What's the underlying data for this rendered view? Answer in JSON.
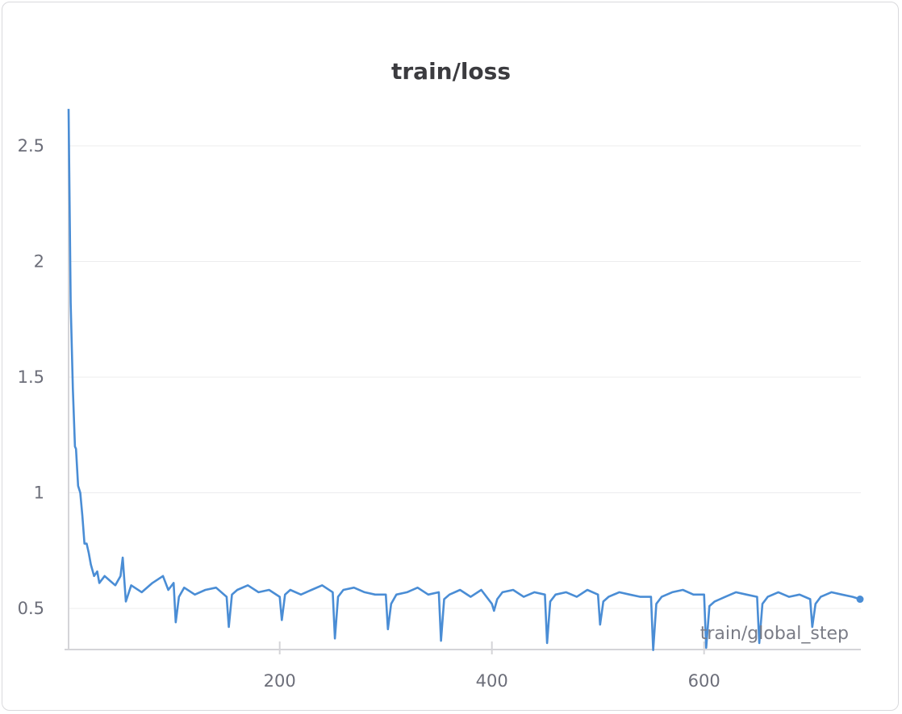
{
  "chart_data": {
    "type": "line",
    "title": "train/loss",
    "xlabel": "train/global_step",
    "ylabel": "",
    "xlim": [
      1,
      747
    ],
    "ylim": [
      0.32,
      2.66
    ],
    "xticks": [
      200,
      400,
      600
    ],
    "yticks": [
      0.5,
      1,
      1.5,
      2,
      2.5
    ],
    "ytick_labels": [
      "0.5",
      "1",
      "1.5",
      "2",
      "2.5"
    ],
    "grid": true,
    "series": [
      {
        "color": "#4a8dd5",
        "points": [
          [
            1,
            2.66
          ],
          [
            3,
            1.82
          ],
          [
            5,
            1.45
          ],
          [
            7,
            1.2
          ],
          [
            8,
            1.19
          ],
          [
            10,
            1.03
          ],
          [
            12,
            1.0
          ],
          [
            14,
            0.9
          ],
          [
            16,
            0.78
          ],
          [
            18,
            0.78
          ],
          [
            20,
            0.74
          ],
          [
            22,
            0.69
          ],
          [
            25,
            0.64
          ],
          [
            28,
            0.66
          ],
          [
            30,
            0.61
          ],
          [
            35,
            0.64
          ],
          [
            40,
            0.62
          ],
          [
            45,
            0.6
          ],
          [
            50,
            0.64
          ],
          [
            52,
            0.72
          ],
          [
            55,
            0.53
          ],
          [
            60,
            0.6
          ],
          [
            70,
            0.57
          ],
          [
            80,
            0.61
          ],
          [
            90,
            0.64
          ],
          [
            95,
            0.58
          ],
          [
            100,
            0.61
          ],
          [
            102,
            0.44
          ],
          [
            105,
            0.55
          ],
          [
            110,
            0.59
          ],
          [
            120,
            0.56
          ],
          [
            130,
            0.58
          ],
          [
            140,
            0.59
          ],
          [
            150,
            0.55
          ],
          [
            152,
            0.42
          ],
          [
            155,
            0.56
          ],
          [
            160,
            0.58
          ],
          [
            170,
            0.6
          ],
          [
            180,
            0.57
          ],
          [
            190,
            0.58
          ],
          [
            200,
            0.55
          ],
          [
            202,
            0.45
          ],
          [
            205,
            0.56
          ],
          [
            210,
            0.58
          ],
          [
            220,
            0.56
          ],
          [
            230,
            0.58
          ],
          [
            240,
            0.6
          ],
          [
            250,
            0.57
          ],
          [
            252,
            0.37
          ],
          [
            255,
            0.55
          ],
          [
            260,
            0.58
          ],
          [
            270,
            0.59
          ],
          [
            280,
            0.57
          ],
          [
            290,
            0.56
          ],
          [
            300,
            0.56
          ],
          [
            302,
            0.41
          ],
          [
            305,
            0.52
          ],
          [
            310,
            0.56
          ],
          [
            320,
            0.57
          ],
          [
            330,
            0.59
          ],
          [
            340,
            0.56
          ],
          [
            350,
            0.57
          ],
          [
            352,
            0.36
          ],
          [
            355,
            0.54
          ],
          [
            360,
            0.56
          ],
          [
            370,
            0.58
          ],
          [
            380,
            0.55
          ],
          [
            390,
            0.58
          ],
          [
            400,
            0.52
          ],
          [
            402,
            0.49
          ],
          [
            405,
            0.54
          ],
          [
            410,
            0.57
          ],
          [
            420,
            0.58
          ],
          [
            430,
            0.55
          ],
          [
            440,
            0.57
          ],
          [
            450,
            0.56
          ],
          [
            452,
            0.35
          ],
          [
            455,
            0.53
          ],
          [
            460,
            0.56
          ],
          [
            470,
            0.57
          ],
          [
            480,
            0.55
          ],
          [
            490,
            0.58
          ],
          [
            500,
            0.56
          ],
          [
            502,
            0.43
          ],
          [
            505,
            0.53
          ],
          [
            510,
            0.55
          ],
          [
            520,
            0.57
          ],
          [
            530,
            0.56
          ],
          [
            540,
            0.55
          ],
          [
            550,
            0.55
          ],
          [
            552,
            0.32
          ],
          [
            555,
            0.52
          ],
          [
            560,
            0.55
          ],
          [
            570,
            0.57
          ],
          [
            580,
            0.58
          ],
          [
            590,
            0.56
          ],
          [
            600,
            0.56
          ],
          [
            602,
            0.33
          ],
          [
            605,
            0.51
          ],
          [
            610,
            0.53
          ],
          [
            620,
            0.55
          ],
          [
            630,
            0.57
          ],
          [
            640,
            0.56
          ],
          [
            650,
            0.55
          ],
          [
            652,
            0.35
          ],
          [
            655,
            0.52
          ],
          [
            660,
            0.55
          ],
          [
            670,
            0.57
          ],
          [
            680,
            0.55
          ],
          [
            690,
            0.56
          ],
          [
            700,
            0.54
          ],
          [
            702,
            0.42
          ],
          [
            705,
            0.52
          ],
          [
            710,
            0.55
          ],
          [
            720,
            0.57
          ],
          [
            730,
            0.56
          ],
          [
            740,
            0.55
          ],
          [
            747,
            0.54
          ]
        ]
      }
    ]
  }
}
